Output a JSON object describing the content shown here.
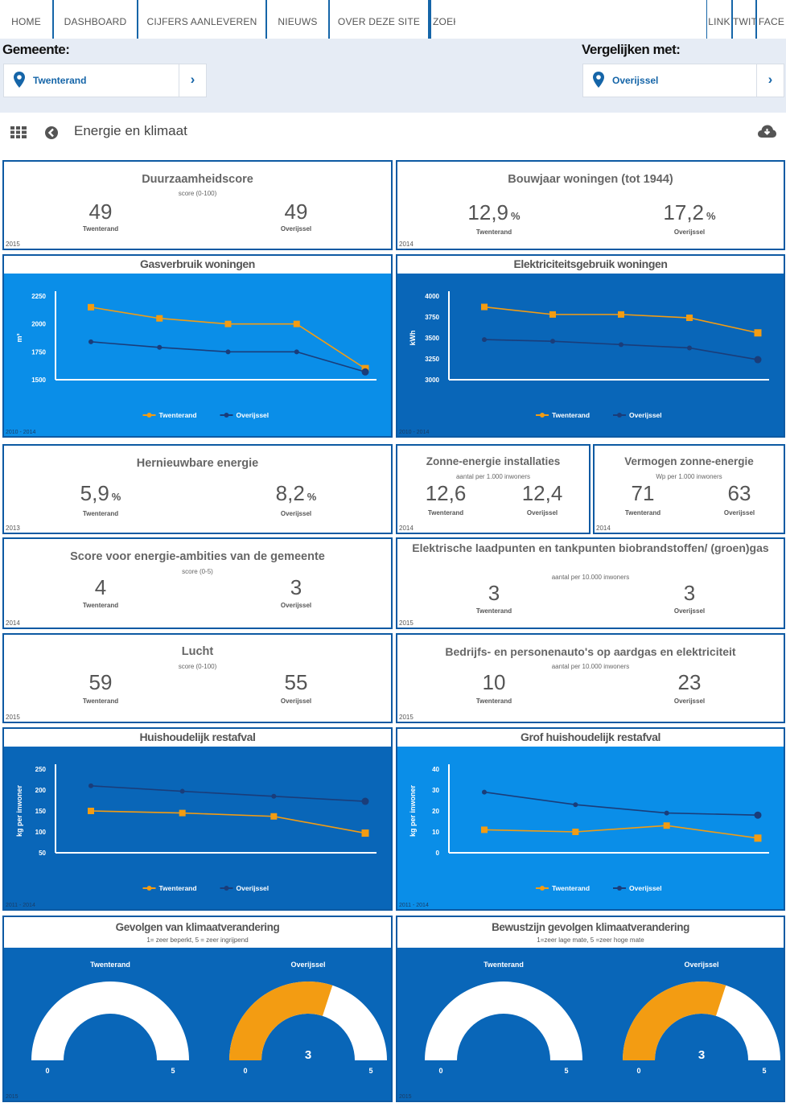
{
  "nav": {
    "items": [
      "HOME",
      "DASHBOARD",
      "CIJFERS AANLEVEREN",
      "NIEUWS",
      "OVER DEZE SITE",
      "ZOEK"
    ],
    "right_items": [
      "LINK",
      "TWIT",
      "FACE"
    ]
  },
  "selector": {
    "gemeente_label": "Gemeente:",
    "gemeente_value": "Twenterand",
    "vergelijken_label": "Vergelijken met:",
    "vergelijken_value": "Overijssel"
  },
  "toolbar": {
    "title": "Energie en klimaat",
    "icons": [
      "grid-icon",
      "back-icon",
      "cloud-download-icon"
    ]
  },
  "labels": {
    "a": "Twenterand",
    "b": "Overijssel"
  },
  "colors": {
    "orange": "#f39c12",
    "navy": "#1a3d7a",
    "blue_light": "#0a8ee8",
    "blue_dark": "#0966b8"
  },
  "cards": {
    "duurzaamheid": {
      "title": "Duurzaamheidscore",
      "sub": "score (0-100)",
      "a": "49",
      "b": "49",
      "year": "2015"
    },
    "bouwjaar": {
      "title": "Bouwjaar woningen (tot 1944)",
      "a": "12,9",
      "b": "17,2",
      "unit": "%",
      "year": "2014"
    },
    "hernieuwbaar": {
      "title": "Hernieuwbare energie",
      "a": "5,9",
      "b": "8,2",
      "unit": "%",
      "year": "2013"
    },
    "zonne_install": {
      "title": "Zonne-energie installaties",
      "sub": "aantal per 1.000 inwoners",
      "a": "12,6",
      "b": "12,4",
      "year": "2014"
    },
    "zonne_vermogen": {
      "title": "Vermogen zonne-energie",
      "sub": "Wp per 1.000 inwoners",
      "a": "71",
      "b": "63",
      "year": "2014"
    },
    "ambities": {
      "title": "Score voor energie-ambities van de gemeente",
      "sub": "score (0-5)",
      "a": "4",
      "b": "3",
      "year": "2014"
    },
    "laadpunten": {
      "title": "Elektrische laadpunten en tankpunten biobrandstoffen/ (groen)gas",
      "sub": "aantal per 10.000 inwoners",
      "a": "3",
      "b": "3",
      "year": "2015"
    },
    "lucht": {
      "title": "Lucht",
      "sub": "score (0-100)",
      "a": "59",
      "b": "55",
      "year": "2015"
    },
    "autos": {
      "title": "Bedrijfs- en personenauto's op aardgas en elektriciteit",
      "sub": "aantal per 10.000 inwoners",
      "a": "10",
      "b": "23",
      "year": "2015"
    }
  },
  "chart_data": [
    {
      "type": "line",
      "title": "Gasverbruik woningen",
      "ylabel": "m³",
      "ylim": [
        1500,
        2250
      ],
      "yticks": [
        1500,
        1750,
        2000,
        2250
      ],
      "years": "2010 - 2014",
      "series": [
        {
          "name": "Twenterand",
          "values": [
            2150,
            2050,
            2000,
            2000,
            1600
          ]
        },
        {
          "name": "Overijssel",
          "values": [
            1840,
            1790,
            1750,
            1750,
            1570
          ]
        }
      ]
    },
    {
      "type": "line",
      "title": "Elektriciteitsgebruik woningen",
      "ylabel": "kWh",
      "ylim": [
        3000,
        4000
      ],
      "yticks": [
        3000,
        3250,
        3500,
        3750,
        4000
      ],
      "years": "2010 - 2014",
      "series": [
        {
          "name": "Twenterand",
          "values": [
            3870,
            3780,
            3780,
            3740,
            3560
          ]
        },
        {
          "name": "Overijssel",
          "values": [
            3480,
            3460,
            3420,
            3380,
            3240
          ]
        }
      ]
    },
    {
      "type": "line",
      "title": "Huishoudelijk restafval",
      "ylabel": "kg per inwoner",
      "ylim": [
        50,
        250
      ],
      "yticks": [
        50,
        100,
        150,
        200,
        250
      ],
      "years": "2011 - 2014",
      "series": [
        {
          "name": "Twenterand",
          "values": [
            150,
            145,
            137,
            97
          ]
        },
        {
          "name": "Overijssel",
          "values": [
            210,
            197,
            185,
            173
          ]
        }
      ]
    },
    {
      "type": "line",
      "title": "Grof huishoudelijk restafval",
      "ylabel": "kg per inwoner",
      "ylim": [
        0,
        40
      ],
      "yticks": [
        0,
        10,
        20,
        30,
        40
      ],
      "years": "2011 - 2014",
      "series": [
        {
          "name": "Twenterand",
          "values": [
            11,
            10,
            13,
            7
          ]
        },
        {
          "name": "Overijssel",
          "values": [
            29,
            23,
            19,
            18
          ]
        }
      ]
    },
    {
      "type": "gauge",
      "title": "Gevolgen van klimaatverandering",
      "sub": "1= zeer beperkt, 5 = zeer ingrijpend",
      "range": [
        0,
        5
      ],
      "year": "2015",
      "series": [
        {
          "name": "Twenterand",
          "value": 0
        },
        {
          "name": "Overijssel",
          "value": 3,
          "label": "3"
        }
      ]
    },
    {
      "type": "gauge",
      "title": "Bewustzijn gevolgen klimaatverandering",
      "sub": "1=zeer lage mate, 5 =zeer hoge mate",
      "range": [
        0,
        5
      ],
      "year": "2015",
      "series": [
        {
          "name": "Twenterand",
          "value": 0
        },
        {
          "name": "Overijssel",
          "value": 3,
          "label": "3"
        }
      ]
    }
  ]
}
